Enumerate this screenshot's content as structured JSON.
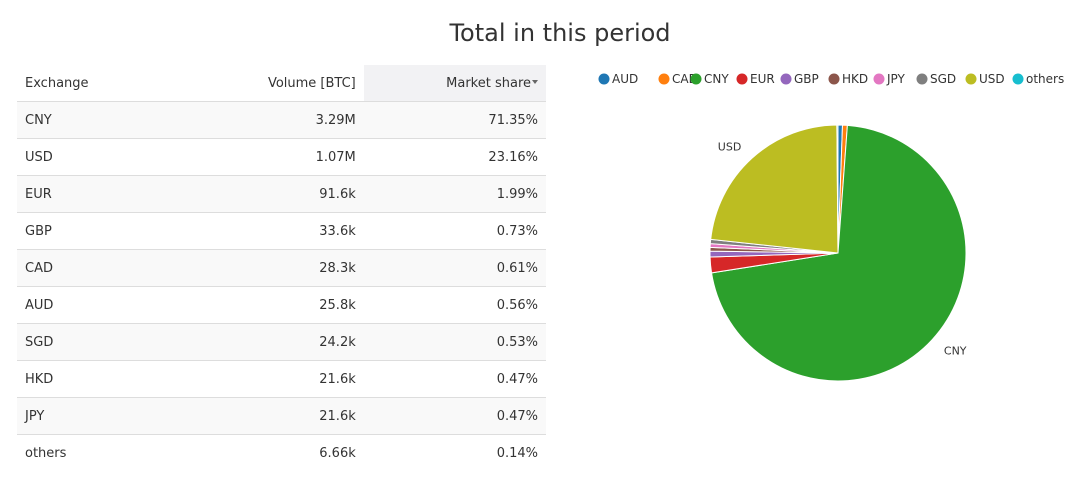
{
  "page": {
    "title": "Total in this period"
  },
  "table": {
    "headers": {
      "exchange": "Exchange",
      "volume": "Volume [BTC]",
      "market_share": "Market share"
    },
    "rows": [
      {
        "exchange": "CNY",
        "volume": "3.29M",
        "share": "71.35%"
      },
      {
        "exchange": "USD",
        "volume": "1.07M",
        "share": "23.16%"
      },
      {
        "exchange": "EUR",
        "volume": "91.6k",
        "share": "1.99%"
      },
      {
        "exchange": "GBP",
        "volume": "33.6k",
        "share": "0.73%"
      },
      {
        "exchange": "CAD",
        "volume": "28.3k",
        "share": "0.61%"
      },
      {
        "exchange": "AUD",
        "volume": "25.8k",
        "share": "0.56%"
      },
      {
        "exchange": "SGD",
        "volume": "24.2k",
        "share": "0.53%"
      },
      {
        "exchange": "HKD",
        "volume": "21.6k",
        "share": "0.47%"
      },
      {
        "exchange": "JPY",
        "volume": "21.6k",
        "share": "0.47%"
      },
      {
        "exchange": "others",
        "volume": "6.66k",
        "share": "0.14%"
      }
    ]
  },
  "chart_data": {
    "type": "pie",
    "title": "",
    "legend_position": "top",
    "slices": [
      {
        "name": "AUD",
        "value": 0.56,
        "color": "#1f77b4",
        "label": ""
      },
      {
        "name": "CAD",
        "value": 0.61,
        "color": "#ff7f0e",
        "label": ""
      },
      {
        "name": "CNY",
        "value": 71.35,
        "color": "#2ca02c",
        "label": "CNY"
      },
      {
        "name": "EUR",
        "value": 1.99,
        "color": "#d62728",
        "label": ""
      },
      {
        "name": "GBP",
        "value": 0.73,
        "color": "#9467bd",
        "label": ""
      },
      {
        "name": "HKD",
        "value": 0.47,
        "color": "#8c564b",
        "label": ""
      },
      {
        "name": "JPY",
        "value": 0.47,
        "color": "#e377c2",
        "label": ""
      },
      {
        "name": "SGD",
        "value": 0.53,
        "color": "#7f7f7f",
        "label": ""
      },
      {
        "name": "USD",
        "value": 23.16,
        "color": "#bcbd22",
        "label": "USD"
      },
      {
        "name": "others",
        "value": 0.14,
        "color": "#17becf",
        "label": ""
      }
    ]
  }
}
